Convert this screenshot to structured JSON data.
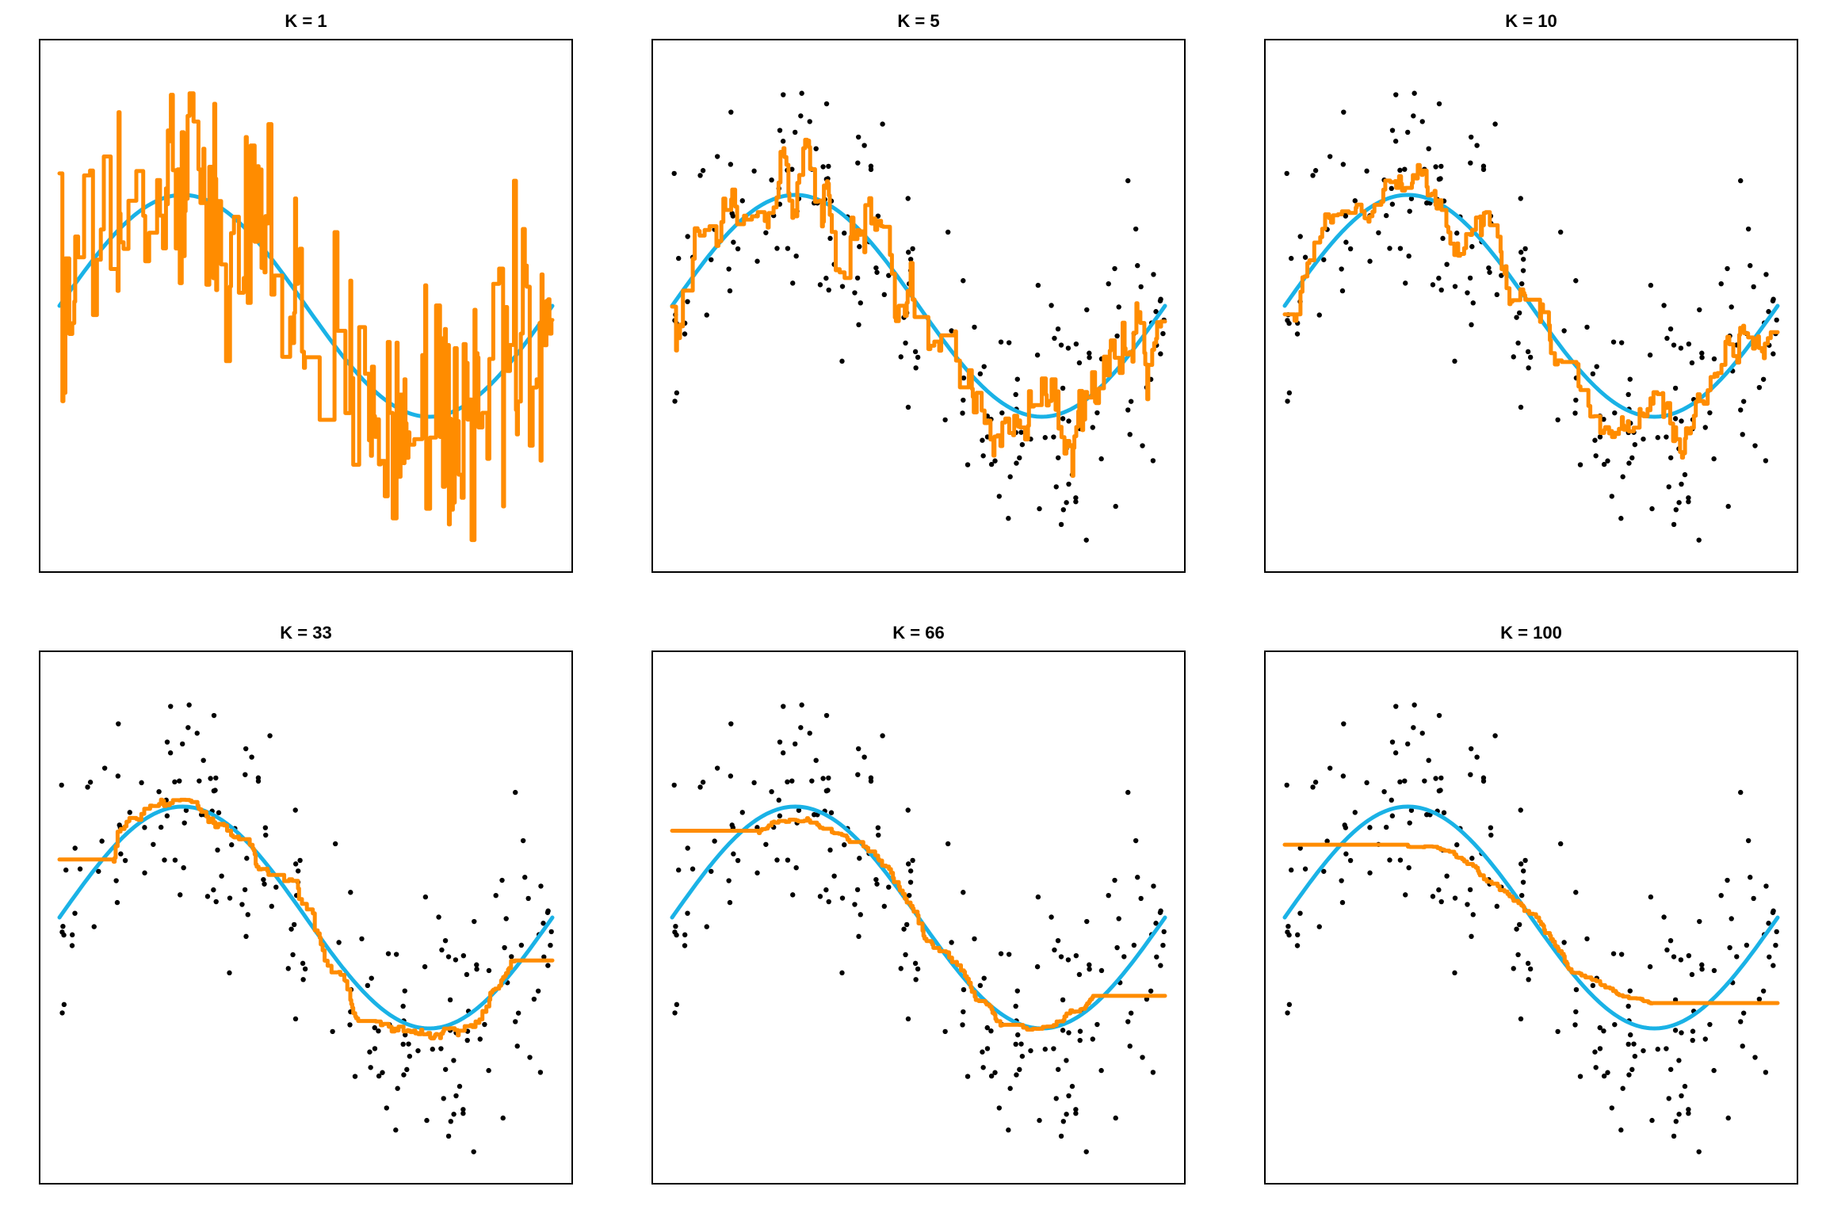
{
  "chart_data": {
    "type": "scatter",
    "x": [
      0.0,
      0.05,
      0.1,
      0.15,
      0.2,
      0.25,
      0.3,
      0.35,
      0.4,
      0.45,
      0.5,
      0.55,
      0.6,
      0.65,
      0.7,
      0.75,
      0.8,
      0.85,
      0.9,
      0.95,
      1.0
    ],
    "truth": [
      0.0,
      0.31,
      0.59,
      0.81,
      0.95,
      1.0,
      0.95,
      0.81,
      0.59,
      0.31,
      0.0,
      -0.31,
      -0.59,
      -0.81,
      -0.95,
      -1.0,
      -0.95,
      -0.81,
      -0.59,
      -0.31,
      0.0
    ],
    "xlim": [
      0,
      1
    ],
    "ylim": [
      -2.4,
      2.4
    ],
    "colors": {
      "truth": "#1ab2e6",
      "fit": "#ff8c00",
      "points": "#000000"
    },
    "panels": [
      {
        "title": "K = 1",
        "k": 1,
        "show_points": false
      },
      {
        "title": "K = 5",
        "k": 5,
        "show_points": true
      },
      {
        "title": "K = 10",
        "k": 10,
        "show_points": true
      },
      {
        "title": "K = 33",
        "k": 33,
        "show_points": true
      },
      {
        "title": "K = 66",
        "k": 66,
        "show_points": true
      },
      {
        "title": "K = 100",
        "k": 100,
        "show_points": true
      }
    ]
  }
}
